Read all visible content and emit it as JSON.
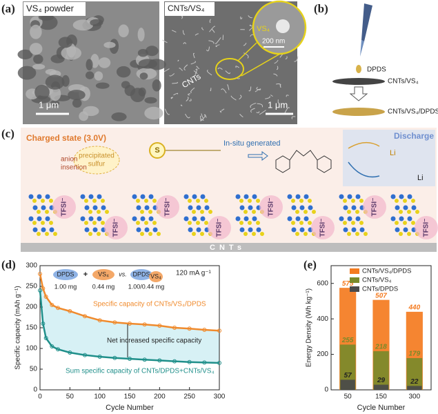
{
  "panels": {
    "a": {
      "label": "(a)",
      "left_title": "VS₄ powder",
      "left_scale": "1 μm",
      "right_title": "CNTs/VS₄",
      "inset_label": "VS₄",
      "inset_scale": "200 nm",
      "cnts_label": "CNTs",
      "right_scale": "1 μm"
    },
    "b": {
      "label": "(b)",
      "drop": "DPDS",
      "substrate": "CNTs/VS₄",
      "product": "CNTs/VS₄/DPDS"
    },
    "c": {
      "label": "(c)",
      "state": "Charged state (3.0V)",
      "sulfur": [
        "precipitated",
        "sulfur"
      ],
      "anion": [
        "anion",
        "insertion"
      ],
      "generated": "In-situ generated",
      "discharge": "Discharge",
      "sulfur_atom": "S",
      "li_product_a": "Li",
      "li_product_b": "Li",
      "anion_labels": [
        "TFSI⁻",
        "TFSI⁻",
        "TFSI⁻",
        "TFSI⁻",
        "TFSI⁻",
        "TFSI⁻",
        "TFSI⁻",
        "TFSI⁻"
      ],
      "base": "CNTs"
    },
    "d": {
      "label": "(d)",
      "current": "120 mA g⁻¹",
      "gap_label": "Net increased specific capacity",
      "inset": {
        "a": "DPDS",
        "plus": "+",
        "b": "VS₄",
        "vs": "vs.",
        "c": "DPDS",
        "d": "VS₄",
        "mass_a": "1.00 mg",
        "mass_b": "0.44 mg",
        "mass_c": "1.00/0.44 mg"
      }
    },
    "e": {
      "label": "(e)"
    }
  },
  "chart_data": [
    {
      "type": "line",
      "x_label": "Cycle Number",
      "y_label": "Specific capacity (mAh g⁻¹)",
      "x": [
        0,
        5,
        10,
        20,
        30,
        50,
        75,
        100,
        125,
        150,
        175,
        200,
        225,
        250,
        275,
        300
      ],
      "series": [
        {
          "name": "Specific capacity of CNTs/VS₄/DPDS",
          "color": "#f08a2c",
          "values": [
            280,
            245,
            225,
            205,
            198,
            190,
            178,
            168,
            163,
            160,
            158,
            155,
            150,
            148,
            145,
            143
          ]
        },
        {
          "name": "Sum specific capacity of CNTs/DPDS+CNTs/VS₄",
          "color": "#1f8f8a",
          "values": [
            240,
            160,
            125,
            105,
            98,
            90,
            84,
            80,
            77,
            75,
            73,
            71,
            69,
            67,
            66,
            65
          ]
        }
      ],
      "xlim": [
        0,
        300
      ],
      "xticks": [
        0,
        50,
        100,
        150,
        200,
        250,
        300
      ],
      "ylim": [
        0,
        300
      ],
      "yticks": [
        0,
        50,
        100,
        150,
        200,
        250,
        300
      ]
    },
    {
      "type": "bar",
      "x_label": "Cycle Number",
      "y_label": "Energy Density (Wh kg⁻¹)",
      "categories": [
        "50",
        "150",
        "300"
      ],
      "series": [
        {
          "name": "CNTs/VS₄/DPDS",
          "color": "#f47b20",
          "values": [
            575,
            507,
            440
          ]
        },
        {
          "name": "CNTs/VS₄",
          "color": "#7a8a2a",
          "values": [
            255,
            218,
            179
          ]
        },
        {
          "name": "CNTs/DPDS",
          "color": "#4a4a4a",
          "values": [
            57,
            29,
            22
          ]
        }
      ],
      "ylim": [
        0,
        700
      ],
      "yticks": [
        0,
        200,
        400,
        600
      ],
      "legend": "top-right"
    }
  ]
}
